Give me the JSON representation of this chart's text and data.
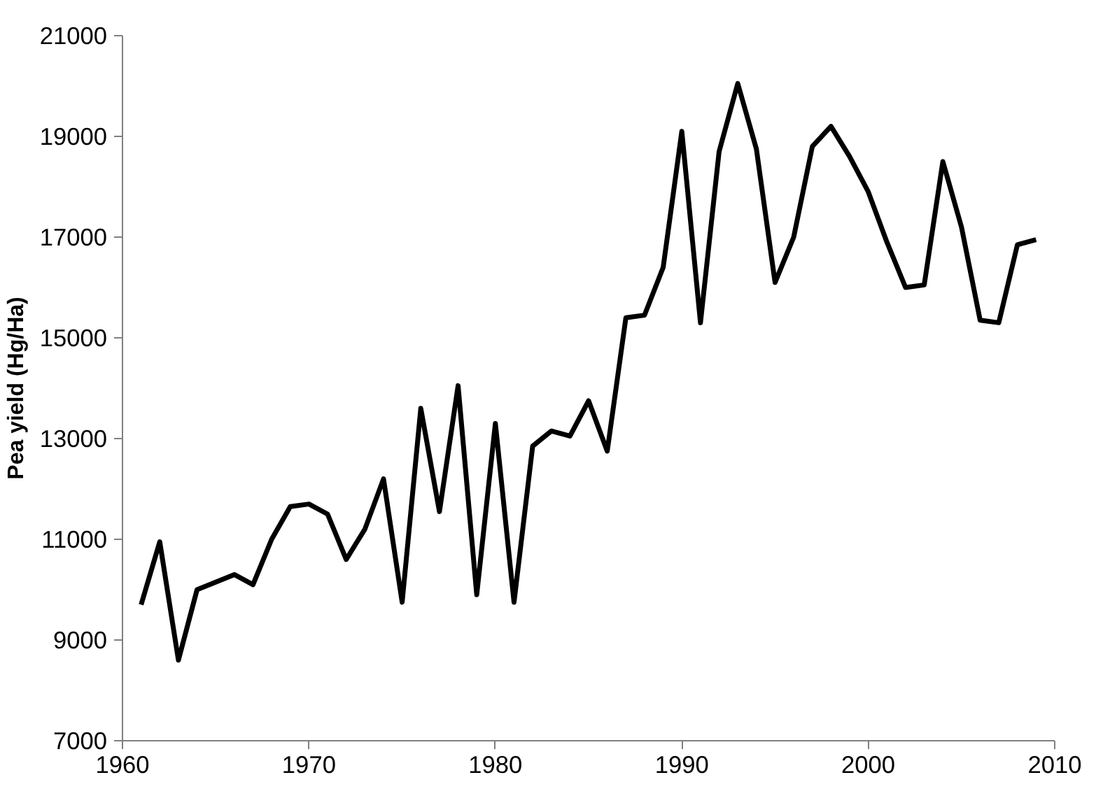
{
  "chart_data": {
    "type": "line",
    "ylabel": "Pea yield (Hg/Ha)",
    "x": [
      1961,
      1962,
      1963,
      1964,
      1965,
      1966,
      1967,
      1968,
      1969,
      1970,
      1971,
      1972,
      1973,
      1974,
      1975,
      1976,
      1977,
      1978,
      1979,
      1980,
      1981,
      1982,
      1983,
      1984,
      1985,
      1986,
      1987,
      1988,
      1989,
      1990,
      1991,
      1992,
      1993,
      1994,
      1995,
      1996,
      1997,
      1998,
      1999,
      2000,
      2001,
      2002,
      2003,
      2004,
      2005,
      2006,
      2007,
      2008,
      2009
    ],
    "series": [
      {
        "color": "#000000",
        "values": [
          9700,
          10950,
          8600,
          10000,
          10150,
          10300,
          10100,
          11000,
          11650,
          11700,
          11500,
          10600,
          11200,
          12200,
          9750,
          13600,
          11550,
          14050,
          9900,
          13300,
          9750,
          12850,
          13150,
          13050,
          13750,
          12750,
          15400,
          15450,
          16400,
          19100,
          15300,
          18700,
          20050,
          18750,
          16100,
          17000,
          18800,
          19200,
          18600,
          17900,
          16900,
          16000,
          16050,
          18500,
          17200,
          15350,
          15300,
          16850,
          16950
        ]
      }
    ],
    "xlim": [
      1960,
      2010
    ],
    "xticks": [
      1960,
      1970,
      1980,
      1990,
      2000,
      2010
    ],
    "ylim": [
      7000,
      21000
    ],
    "yticks": [
      7000,
      9000,
      11000,
      13000,
      15000,
      17000,
      19000,
      21000
    ],
    "marker": "none",
    "line_style": "solid"
  }
}
